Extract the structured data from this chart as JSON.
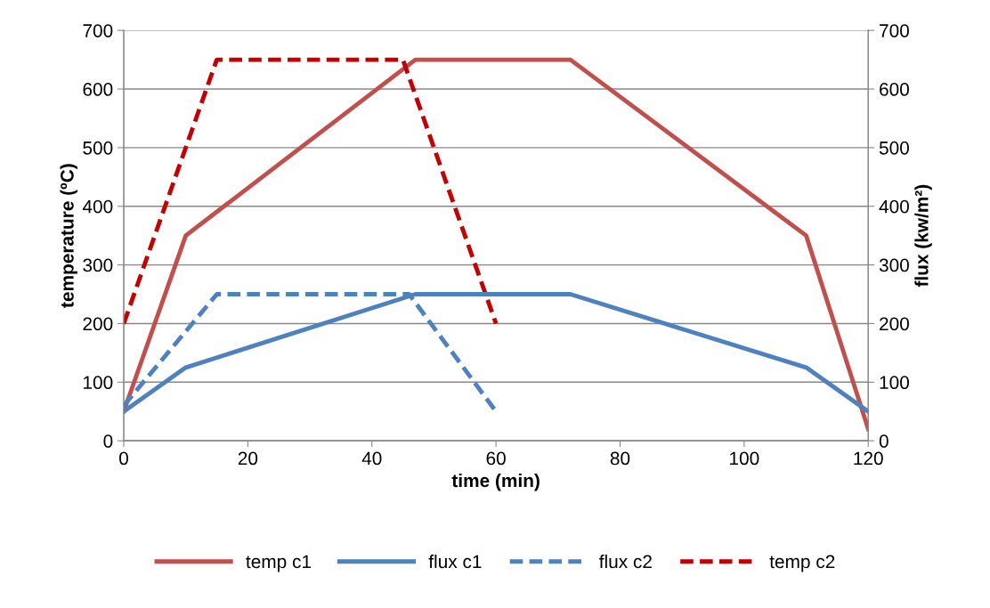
{
  "chart_data": {
    "type": "line",
    "xlabel": "time (min)",
    "ylabel": "temperature (ºC)",
    "y2label": "flux (kw/m²)",
    "xlim": [
      0,
      120
    ],
    "xticks": [
      0,
      20,
      40,
      60,
      80,
      100,
      120
    ],
    "ylim": [
      0,
      700
    ],
    "yticks": [
      0,
      100,
      200,
      300,
      400,
      500,
      600,
      700
    ],
    "y2lim": [
      0,
      700
    ],
    "y2ticks": [
      0,
      100,
      200,
      300,
      400,
      500,
      600,
      700
    ],
    "grid": "y",
    "legend": "bottom",
    "marker": "none",
    "series": [
      {
        "name": "temp c1",
        "color": "#c0504d",
        "line_style": "solid",
        "axis": "y",
        "x": [
          0,
          10,
          47,
          72,
          110,
          120
        ],
        "values": [
          50,
          350,
          650,
          650,
          350,
          20
        ]
      },
      {
        "name": "flux c1",
        "color": "#4f81bd",
        "line_style": "solid",
        "axis": "y2",
        "x": [
          0,
          10,
          47,
          72,
          110,
          120
        ],
        "values": [
          50,
          125,
          250,
          250,
          125,
          50
        ]
      },
      {
        "name": "flux c2",
        "color": "#4f81bd",
        "line_style": "dashed",
        "axis": "y2",
        "x": [
          0,
          15,
          46,
          60
        ],
        "values": [
          60,
          250,
          250,
          50
        ]
      },
      {
        "name": "temp c2",
        "color": "#c00000",
        "line_style": "dashed",
        "axis": "y",
        "x": [
          0,
          15,
          45,
          60
        ],
        "values": [
          200,
          650,
          650,
          200
        ]
      }
    ]
  }
}
